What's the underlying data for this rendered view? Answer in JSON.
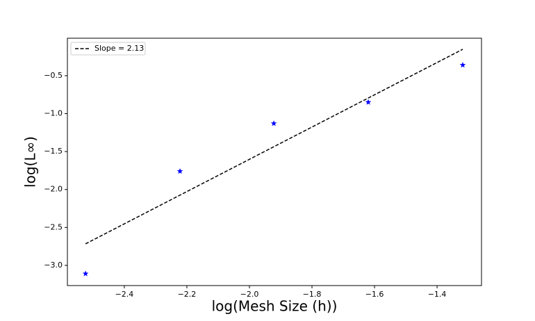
{
  "chart_data": {
    "type": "scatter",
    "x_label": "log(Mesh Size (h))",
    "y_label": "log(L∞)",
    "xlim": [
      -2.582,
      -1.258
    ],
    "ylim": [
      -3.266,
      -0.006
    ],
    "xticks": [
      {
        "value": -2.4,
        "label": "−2.4"
      },
      {
        "value": -2.2,
        "label": "−2.2"
      },
      {
        "value": -2.0,
        "label": "−2.0"
      },
      {
        "value": -1.8,
        "label": "−1.8"
      },
      {
        "value": -1.6,
        "label": "−1.6"
      },
      {
        "value": -1.4,
        "label": "−1.4"
      }
    ],
    "yticks": [
      {
        "value": -3.0,
        "label": "−3.0"
      },
      {
        "value": -2.5,
        "label": "−2.5"
      },
      {
        "value": -2.0,
        "label": "−2.0"
      },
      {
        "value": -1.5,
        "label": "−1.5"
      },
      {
        "value": -1.0,
        "label": "−1.0"
      },
      {
        "value": -0.5,
        "label": "−0.5"
      }
    ],
    "grid": false,
    "legend_position": "upper left",
    "series": [
      {
        "color": "#0000ff",
        "marker": "star",
        "x": [
          -2.524,
          -2.222,
          -1.922,
          -1.62,
          -1.318
        ],
        "values": [
          -3.11,
          -1.76,
          -1.13,
          -0.85,
          -0.36
        ]
      },
      {
        "name": "Slope = 2.13",
        "color": "#000000",
        "linestyle": "dashed",
        "x": [
          -2.524,
          -1.318
        ],
        "values": [
          -2.716,
          -0.152
        ]
      }
    ]
  }
}
